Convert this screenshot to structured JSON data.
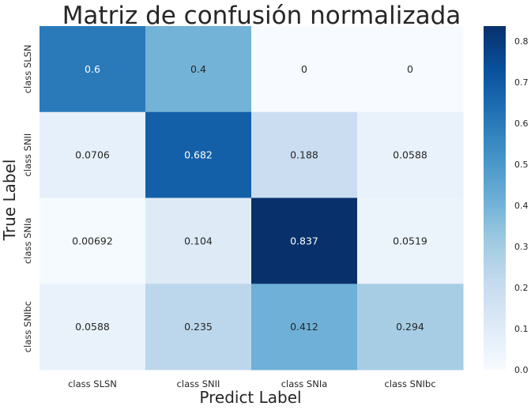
{
  "chart_data": {
    "type": "heatmap",
    "title": "Matriz de confusión normalizada",
    "xlabel": "Predict Label",
    "ylabel": "True Label",
    "x_categories": [
      "class SLSN",
      "class SNII",
      "class SNIa",
      "class SNIbc"
    ],
    "y_categories": [
      "class SLSN",
      "class SNII",
      "class SNIa",
      "class SNIbc"
    ],
    "values": [
      [
        0.6,
        0.4,
        0,
        0
      ],
      [
        0.0706,
        0.682,
        0.188,
        0.0588
      ],
      [
        0.00692,
        0.104,
        0.837,
        0.0519
      ],
      [
        0.0588,
        0.235,
        0.412,
        0.294
      ]
    ],
    "cell_labels": [
      [
        "0.6",
        "0.4",
        "0",
        "0"
      ],
      [
        "0.0706",
        "0.682",
        "0.188",
        "0.0588"
      ],
      [
        "0.00692",
        "0.104",
        "0.837",
        "0.0519"
      ],
      [
        "0.0588",
        "0.235",
        "0.412",
        "0.294"
      ]
    ],
    "colormap": "Blues",
    "colorbar": {
      "range": [
        0,
        0.837
      ],
      "ticks": [
        0.0,
        0.1,
        0.2,
        0.3,
        0.4,
        0.5,
        0.6,
        0.7,
        0.8
      ],
      "tick_labels": [
        "0.0",
        "0.1",
        "0.2",
        "0.3",
        "0.4",
        "0.5",
        "0.6",
        "0.7",
        "0.8"
      ]
    },
    "grid": false
  }
}
